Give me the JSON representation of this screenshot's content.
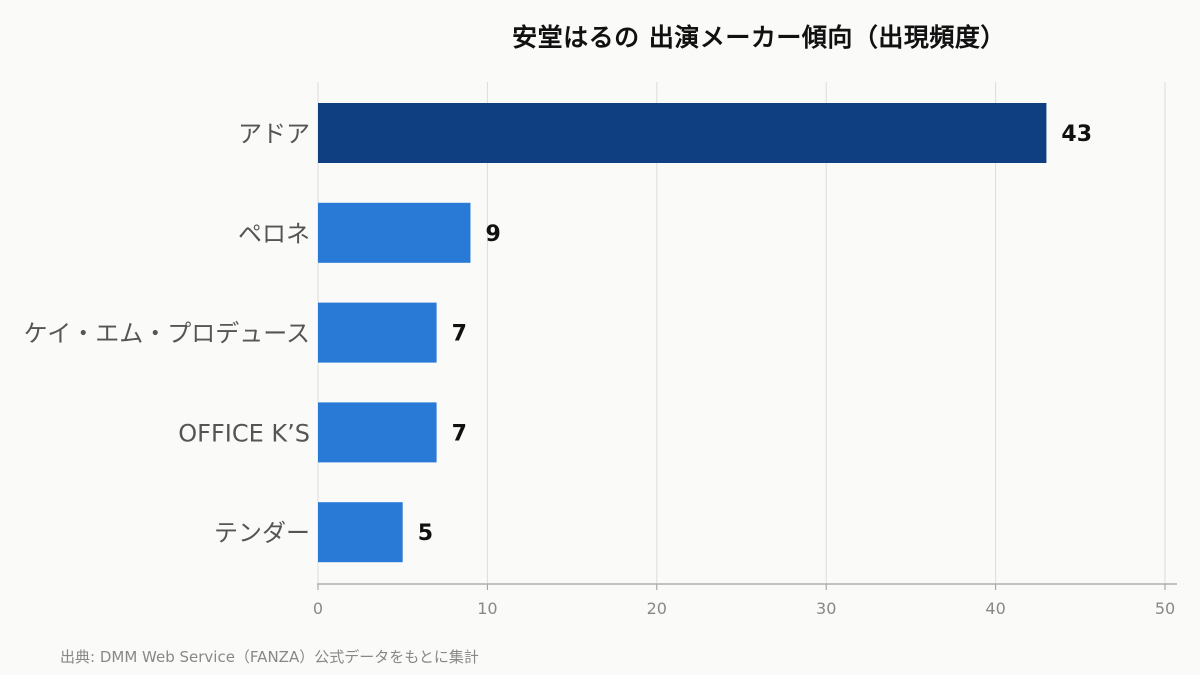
{
  "chart_data": {
    "type": "bar",
    "orientation": "horizontal",
    "title": "安堂はるの 出演メーカー傾向（出現頻度）",
    "categories": [
      "アドア",
      "ペロネ",
      "ケイ・エム・プロデュース",
      "OFFICE K’S",
      "テンダー"
    ],
    "values": [
      43,
      9,
      7,
      7,
      5
    ],
    "xlim": [
      0,
      50
    ],
    "xticks": [
      0,
      10,
      20,
      30,
      40,
      50
    ],
    "xlabel": "",
    "ylabel": "",
    "grid": "vertical",
    "data_labels": true,
    "colors": {
      "highlight": "#0f3f80",
      "default": "#2979d6"
    },
    "highlight_index": 0
  },
  "source": "出典: DMM Web Service（FANZA）公式データをもとに集計"
}
